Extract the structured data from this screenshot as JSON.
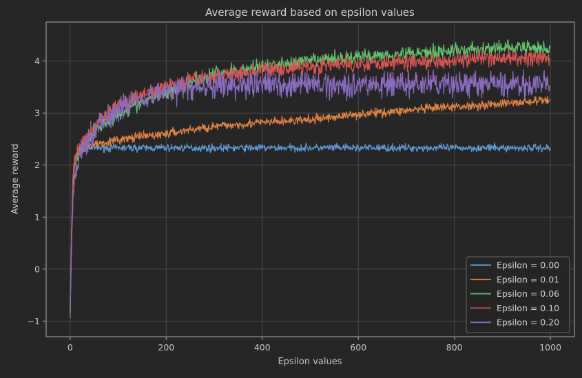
{
  "chart_data": {
    "type": "line",
    "title": "Average reward based on epsilon values",
    "xlabel": "Epsilon values",
    "ylabel": "Average reward",
    "xlim": [
      -50,
      1050
    ],
    "ylim": [
      -1.3,
      4.75
    ],
    "xticks": [
      0,
      200,
      400,
      600,
      800,
      1000
    ],
    "yticks": [
      -1,
      0,
      1,
      2,
      3,
      4
    ],
    "xtick_labels": [
      "0",
      "200",
      "400",
      "600",
      "800",
      "1000"
    ],
    "ytick_labels": [
      "−1",
      "0",
      "1",
      "2",
      "3",
      "4"
    ],
    "grid": true,
    "legend_position": "lower-right",
    "background": "#262626",
    "series": [
      {
        "name": "Epsilon = 0.00",
        "color": "#5b9ad5",
        "noise": 0.05,
        "x": [
          0,
          3,
          6,
          10,
          15,
          20,
          30,
          50,
          100,
          200,
          300,
          400,
          500,
          600,
          700,
          800,
          900,
          1000
        ],
        "values": [
          -0.95,
          0.6,
          1.7,
          2.1,
          2.25,
          2.3,
          2.33,
          2.33,
          2.33,
          2.33,
          2.33,
          2.33,
          2.33,
          2.33,
          2.33,
          2.33,
          2.33,
          2.33
        ]
      },
      {
        "name": "Epsilon = 0.01",
        "color": "#e0813e",
        "noise": 0.06,
        "x": [
          0,
          3,
          6,
          10,
          20,
          40,
          60,
          100,
          150,
          200,
          250,
          300,
          400,
          500,
          600,
          700,
          800,
          900,
          1000
        ],
        "values": [
          -0.85,
          0.8,
          1.8,
          2.15,
          2.3,
          2.38,
          2.42,
          2.48,
          2.55,
          2.6,
          2.68,
          2.74,
          2.82,
          2.87,
          2.98,
          3.05,
          3.12,
          3.18,
          3.25
        ]
      },
      {
        "name": "Epsilon = 0.06",
        "color": "#5fc46a",
        "noise": 0.1,
        "x": [
          0,
          3,
          6,
          10,
          20,
          40,
          60,
          100,
          150,
          200,
          250,
          300,
          400,
          500,
          600,
          700,
          800,
          900,
          1000
        ],
        "values": [
          -0.75,
          0.7,
          1.6,
          2.05,
          2.3,
          2.55,
          2.75,
          3.0,
          3.2,
          3.4,
          3.6,
          3.75,
          3.9,
          4.0,
          4.08,
          4.15,
          4.2,
          4.25,
          4.25
        ]
      },
      {
        "name": "Epsilon = 0.10",
        "color": "#d9534f",
        "noise": 0.11,
        "x": [
          0,
          3,
          6,
          10,
          20,
          40,
          60,
          100,
          150,
          200,
          250,
          300,
          400,
          500,
          600,
          700,
          800,
          900,
          1000
        ],
        "values": [
          -0.7,
          0.75,
          1.7,
          2.1,
          2.35,
          2.6,
          2.85,
          3.15,
          3.35,
          3.5,
          3.62,
          3.72,
          3.82,
          3.9,
          3.95,
          4.0,
          4.02,
          4.05,
          4.05
        ]
      },
      {
        "name": "Epsilon = 0.20",
        "color": "#8a6bbf",
        "noise": 0.17,
        "x": [
          0,
          3,
          6,
          10,
          20,
          40,
          60,
          100,
          150,
          200,
          250,
          300,
          400,
          500,
          600,
          700,
          800,
          900,
          1000
        ],
        "values": [
          -0.7,
          0.5,
          1.4,
          1.8,
          2.2,
          2.5,
          2.8,
          3.1,
          3.3,
          3.42,
          3.48,
          3.52,
          3.55,
          3.55,
          3.55,
          3.55,
          3.55,
          3.55,
          3.55
        ]
      }
    ]
  }
}
